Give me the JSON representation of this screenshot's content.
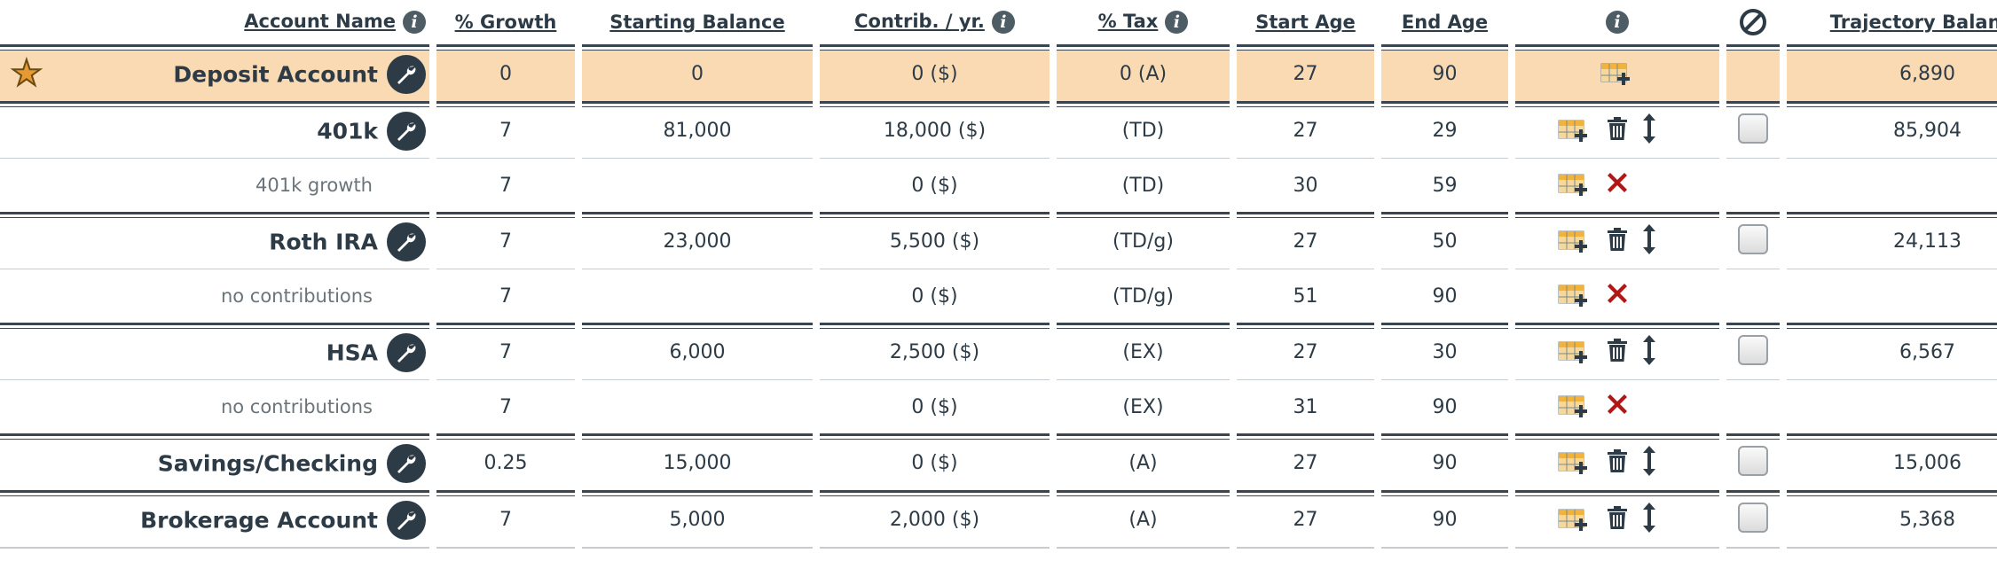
{
  "headers": {
    "account_name": "Account Name",
    "growth": "% Growth",
    "starting_balance": "Starting Balance",
    "contrib": "Contrib. / yr.",
    "tax": "% Tax",
    "start_age": "Start Age",
    "end_age": "End Age",
    "trajectory_balance": "Trajectory Balance"
  },
  "rows": [
    {
      "name": "Deposit Account",
      "growth": "0",
      "start_bal": "0",
      "contrib": "0 ($)",
      "tax": "0 (A)",
      "start_age": "27",
      "end_age": "90",
      "traj": "6,890"
    },
    {
      "name": "401k",
      "growth": "7",
      "start_bal": "81,000",
      "contrib": "18,000 ($)",
      "tax": "(TD)",
      "start_age": "27",
      "end_age": "29",
      "traj": "85,904"
    },
    {
      "name": "401k growth",
      "growth": "7",
      "start_bal": "",
      "contrib": "0 ($)",
      "tax": "(TD)",
      "start_age": "30",
      "end_age": "59",
      "traj": ""
    },
    {
      "name": "Roth IRA",
      "growth": "7",
      "start_bal": "23,000",
      "contrib": "5,500 ($)",
      "tax": "(TD/g)",
      "start_age": "27",
      "end_age": "50",
      "traj": "24,113"
    },
    {
      "name": "no contributions",
      "growth": "7",
      "start_bal": "",
      "contrib": "0 ($)",
      "tax": "(TD/g)",
      "start_age": "51",
      "end_age": "90",
      "traj": ""
    },
    {
      "name": "HSA",
      "growth": "7",
      "start_bal": "6,000",
      "contrib": "2,500 ($)",
      "tax": "(EX)",
      "start_age": "27",
      "end_age": "30",
      "traj": "6,567"
    },
    {
      "name": "no contributions",
      "growth": "7",
      "start_bal": "",
      "contrib": "0 ($)",
      "tax": "(EX)",
      "start_age": "31",
      "end_age": "90",
      "traj": ""
    },
    {
      "name": "Savings/Checking",
      "growth": "0.25",
      "start_bal": "15,000",
      "contrib": "0 ($)",
      "tax": "(A)",
      "start_age": "27",
      "end_age": "90",
      "traj": "15,006"
    },
    {
      "name": "Brokerage Account",
      "growth": "7",
      "start_bal": "5,000",
      "contrib": "2,000 ($)",
      "tax": "(A)",
      "start_age": "27",
      "end_age": "90",
      "traj": "5,368"
    }
  ],
  "icons": {
    "info": "info-icon",
    "disable": "ban-icon",
    "star": "star-icon",
    "wrench": "wrench-icon",
    "add_table": "table-add-icon",
    "trash": "trash-icon",
    "move": "move-vertical-icon",
    "remove": "close-x-icon"
  },
  "colors": {
    "text": "#2d3b47",
    "deposit_row_bg": "#f9dab3",
    "star": "#e79a33",
    "remove_x": "#b01818",
    "muted": "#6b747a"
  }
}
